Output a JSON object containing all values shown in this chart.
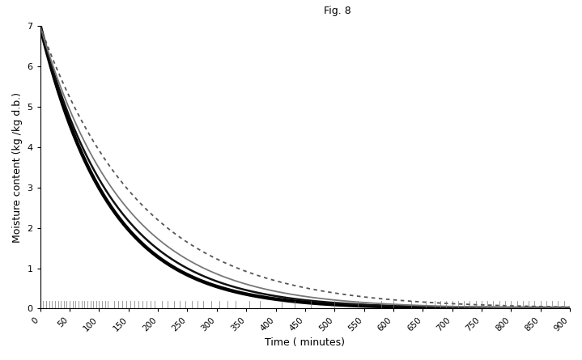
{
  "title": "Fig. 8",
  "xlabel": "Time ( minutes)",
  "ylabel": "Moisture content (kg /kg d.b.)",
  "xlim": [
    0,
    900
  ],
  "ylim": [
    0,
    7
  ],
  "yticks": [
    0,
    1,
    2,
    3,
    4,
    5,
    6,
    7
  ],
  "xticks": [
    0,
    50,
    100,
    150,
    200,
    250,
    300,
    350,
    400,
    450,
    500,
    550,
    600,
    650,
    700,
    750,
    800,
    850,
    900
  ],
  "background_color": "#ffffff",
  "M0": 7.0,
  "curves": [
    {
      "color": "#000000",
      "linewidth": 3.2,
      "linestyle": "solid",
      "k": 0.0085
    },
    {
      "color": "#111111",
      "linewidth": 1.8,
      "linestyle": "solid",
      "k": 0.0078
    },
    {
      "color": "#777777",
      "linewidth": 1.3,
      "linestyle": "solid",
      "k": 0.007
    },
    {
      "color": "#555555",
      "linewidth": 1.3,
      "linestyle": "dotted",
      "k": 0.0058
    }
  ],
  "marker_color": "#777777",
  "marker_lw": 0.6,
  "marker_height": 0.18,
  "marker_groups": [
    {
      "start": 5,
      "end": 120,
      "step": 5
    },
    {
      "start": 125,
      "end": 200,
      "step": 7
    },
    {
      "start": 207,
      "end": 280,
      "step": 10
    },
    {
      "start": 290,
      "end": 340,
      "step": 14
    },
    {
      "start": 355,
      "end": 390,
      "step": 18
    },
    {
      "start": 410,
      "end": 445,
      "step": 22
    },
    {
      "start": 460,
      "end": 480,
      "step": 28
    },
    {
      "start": 500,
      "end": 520,
      "step": 25
    },
    {
      "start": 540,
      "end": 565,
      "step": 28
    },
    {
      "start": 580,
      "end": 610,
      "step": 20
    },
    {
      "start": 630,
      "end": 660,
      "step": 25
    },
    {
      "start": 670,
      "end": 900,
      "step": 10
    }
  ]
}
